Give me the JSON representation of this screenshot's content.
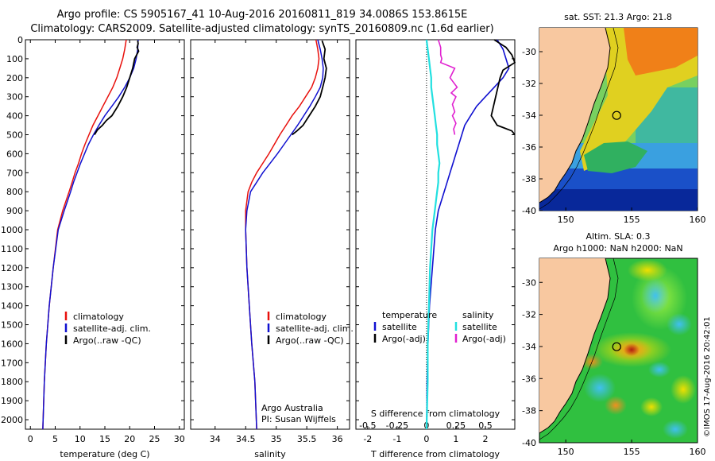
{
  "header": {
    "title_line1": "Argo profile: CS 5905167_41 10-Aug-2016 20160811_819 34.0086S 153.8615E",
    "title_line2": "Climatology: CARS2009. Satellite-adjusted climatology: synTS_20160809.nc (1.6d earlier)"
  },
  "colors": {
    "climatology": "#e8100c",
    "satellite": "#1010d0",
    "argo": "#000000",
    "salinity_satellite": "#22e0e0",
    "salinity_argo": "#e020d0",
    "land": "#f8c8a0"
  },
  "chart_data": [
    {
      "type": "line",
      "id": "temperature",
      "xlabel": "temperature (deg C)",
      "ylabel": "",
      "xlim": [
        -1,
        31
      ],
      "ylim": [
        2050,
        0
      ],
      "xticks": [
        0,
        5,
        10,
        15,
        20,
        25,
        30
      ],
      "yticks": [
        0,
        100,
        200,
        300,
        400,
        500,
        600,
        700,
        800,
        900,
        1000,
        1100,
        1200,
        1300,
        1400,
        1500,
        1600,
        1700,
        1800,
        1900,
        2000
      ],
      "legend": [
        "climatology",
        "satellite-adj. clim.",
        "Argo(..raw -QC)"
      ],
      "series": [
        {
          "name": "climatology",
          "x": [
            19.3,
            19.0,
            18.6,
            18.0,
            17.4,
            16.6,
            15.6,
            14.6,
            13.6,
            12.6,
            11.8,
            11.0,
            10.3,
            9.7,
            9.0,
            8.4,
            7.8,
            6.5,
            5.5,
            4.6,
            3.8,
            3.2,
            2.8,
            2.5
          ],
          "y": [
            0,
            50,
            100,
            150,
            200,
            250,
            300,
            350,
            400,
            450,
            500,
            550,
            600,
            650,
            700,
            750,
            800,
            900,
            1000,
            1200,
            1400,
            1600,
            1800,
            2050
          ]
        },
        {
          "name": "satellite-adj. clim.",
          "x": [
            21.7,
            21.6,
            21.3,
            20.8,
            20.0,
            19.0,
            17.8,
            16.4,
            15.0,
            13.8,
            12.7,
            11.7,
            10.9,
            10.1,
            9.4,
            8.7,
            8.1,
            6.8,
            5.6,
            4.6,
            3.8,
            3.2,
            2.8,
            2.5
          ],
          "y": [
            0,
            50,
            100,
            150,
            200,
            250,
            300,
            350,
            400,
            450,
            500,
            550,
            600,
            650,
            700,
            750,
            800,
            900,
            1000,
            1200,
            1400,
            1600,
            1800,
            2050
          ]
        },
        {
          "name": "Argo(..raw -QC)",
          "x": [
            21.6,
            21.7,
            21.5,
            21.8,
            21.4,
            21.0,
            20.6,
            20.0,
            19.4,
            18.6,
            17.6,
            16.4,
            15.3,
            14.5,
            13.5,
            12.9
          ],
          "y": [
            5,
            20,
            40,
            60,
            80,
            100,
            150,
            200,
            250,
            300,
            350,
            400,
            425,
            450,
            475,
            500
          ]
        }
      ]
    },
    {
      "type": "line",
      "id": "salinity",
      "xlabel": "salinity",
      "xlim": [
        33.6,
        36.2
      ],
      "ylim": [
        2050,
        0
      ],
      "xticks": [
        34,
        34.5,
        35,
        35.5,
        36
      ],
      "legend": [
        "climatology",
        "satellite-adj. clim.",
        "Argo(..raw -QC)"
      ],
      "annotation": [
        "Argo Australia",
        "PI: Susan Wijffels"
      ],
      "series": [
        {
          "name": "climatology",
          "x": [
            35.65,
            35.68,
            35.7,
            35.68,
            35.64,
            35.58,
            35.48,
            35.38,
            35.26,
            35.16,
            35.06,
            34.97,
            34.88,
            34.78,
            34.68,
            34.6,
            34.54,
            34.5,
            34.5,
            34.52,
            34.56,
            34.6,
            34.65,
            34.68
          ],
          "y": [
            0,
            50,
            100,
            150,
            200,
            250,
            300,
            350,
            400,
            450,
            500,
            550,
            600,
            650,
            700,
            750,
            800,
            900,
            1000,
            1200,
            1400,
            1600,
            1800,
            2050
          ]
        },
        {
          "name": "satellite-adj. clim.",
          "x": [
            35.68,
            35.72,
            35.75,
            35.77,
            35.76,
            35.72,
            35.64,
            35.55,
            35.45,
            35.35,
            35.24,
            35.13,
            35.02,
            34.9,
            34.78,
            34.68,
            34.58,
            34.52,
            34.5,
            34.52,
            34.56,
            34.6,
            34.65,
            34.68
          ],
          "y": [
            0,
            50,
            100,
            150,
            200,
            250,
            300,
            350,
            400,
            450,
            500,
            550,
            600,
            650,
            700,
            750,
            800,
            900,
            1000,
            1200,
            1400,
            1600,
            1800,
            2050
          ]
        },
        {
          "name": "Argo(..raw -QC)",
          "x": [
            35.75,
            35.8,
            35.78,
            35.82,
            35.8,
            35.76,
            35.72,
            35.64,
            35.54,
            35.44,
            35.34,
            35.26
          ],
          "y": [
            5,
            50,
            100,
            150,
            200,
            250,
            300,
            350,
            400,
            450,
            480,
            500
          ]
        }
      ]
    },
    {
      "type": "line",
      "id": "difference",
      "xlabel": "T difference from climatology",
      "top_axis_label": "S difference from climatology",
      "xlim": [
        -2.4,
        3.0
      ],
      "ylim": [
        2050,
        0
      ],
      "xticks": [
        -2,
        -1,
        0,
        1,
        2
      ],
      "top_ticks": [
        -0.5,
        -0.25,
        0,
        0.25,
        0.5
      ],
      "legend_groups": [
        {
          "title": "temperature",
          "items": [
            "satellite",
            "Argo(-adj)"
          ]
        },
        {
          "title": "salinity",
          "items": [
            "satellite",
            "Argo(-adj)"
          ]
        }
      ],
      "series": [
        {
          "name": "temperature satellite",
          "x": [
            2.4,
            2.6,
            2.7,
            2.8,
            2.6,
            2.3,
            2.0,
            1.7,
            1.5,
            1.3,
            1.2,
            1.1,
            1.0,
            0.9,
            0.8,
            0.7,
            0.6,
            0.4,
            0.3,
            0.2,
            0.1,
            0.05,
            0.02,
            0.0
          ],
          "y": [
            0,
            50,
            100,
            150,
            200,
            250,
            300,
            350,
            400,
            450,
            500,
            550,
            600,
            650,
            700,
            750,
            800,
            900,
            1000,
            1200,
            1400,
            1600,
            1800,
            2050
          ]
        },
        {
          "name": "temperature Argo(-adj)",
          "x": [
            2.3,
            2.7,
            2.9,
            3.0,
            2.6,
            2.5,
            2.2,
            2.4,
            2.9,
            3.0
          ],
          "y": [
            0,
            40,
            80,
            120,
            160,
            200,
            400,
            450,
            480,
            500
          ]
        },
        {
          "name": "salinity satellite",
          "x": [
            0.0,
            0.01,
            0.02,
            0.03,
            0.04,
            0.04,
            0.05,
            0.06,
            0.07,
            0.08,
            0.09,
            0.09,
            0.1,
            0.11,
            0.1,
            0.1,
            0.09,
            0.07,
            0.05,
            0.03,
            0.02,
            0.01,
            0.01,
            0.0
          ],
          "y": [
            0,
            50,
            100,
            150,
            200,
            250,
            300,
            350,
            400,
            450,
            500,
            550,
            600,
            650,
            700,
            750,
            800,
            900,
            1000,
            1200,
            1400,
            1600,
            1800,
            2050
          ]
        },
        {
          "name": "salinity Argo(-adj)",
          "x": [
            0.1,
            0.12,
            0.12,
            0.13,
            0.12,
            0.24,
            0.2,
            0.26,
            0.21,
            0.25,
            0.22,
            0.24,
            0.22,
            0.25,
            0.23,
            0.24
          ],
          "y": [
            0,
            40,
            80,
            100,
            120,
            150,
            200,
            250,
            280,
            300,
            340,
            380,
            400,
            440,
            470,
            500
          ]
        }
      ]
    },
    {
      "type": "heatmap",
      "id": "sst_map",
      "title": "sat. SST: 21.3  Argo: 21.8",
      "xlim": [
        148,
        160
      ],
      "ylim": [
        -40,
        -28.5
      ],
      "xticks": [
        150,
        155,
        160
      ],
      "yticks": [
        -30,
        -32,
        -34,
        -36,
        -38,
        -40
      ],
      "marker": {
        "lon": 153.86,
        "lat": -34.01
      }
    },
    {
      "type": "heatmap",
      "id": "sla_map",
      "title_lines": [
        "Altim. SLA: 0.3",
        "Argo h1000: NaN h2000: NaN"
      ],
      "xlim": [
        148,
        160
      ],
      "ylim": [
        -40,
        -28.5
      ],
      "xticks": [
        150,
        155,
        160
      ],
      "yticks": [
        -30,
        -32,
        -34,
        -36,
        -38,
        -40
      ],
      "marker": {
        "lon": 153.86,
        "lat": -34.01
      }
    }
  ],
  "credit": "©IMOS 17-Aug-2016 20:42:01"
}
